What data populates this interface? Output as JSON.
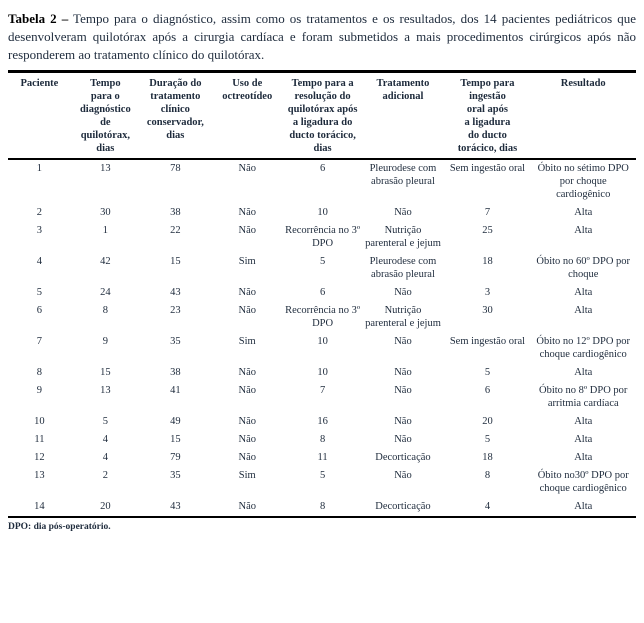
{
  "colors": {
    "text": "#1e2b3c",
    "rule": "#000000"
  },
  "caption": {
    "label": "Tabela 2 –",
    "text": "Tempo para o diagnóstico, assim como os tratamentos e os resultados, dos 14 pacientes pediátricos que desenvolveram quilotórax após a cirurgia cardíaca e foram submetidos a mais procedimentos cirúrgicos após não responderem ao tratamento clínico do quilotórax."
  },
  "table": {
    "headers": [
      [
        "Paciente"
      ],
      [
        "Tempo",
        "para o",
        "diagnóstico",
        "de",
        "quilotórax,",
        "dias"
      ],
      [
        "Duração do",
        "tratamento",
        "clínico",
        "conservador,",
        "dias"
      ],
      [
        "Uso de",
        "octreotídeo"
      ],
      [
        "Tempo para a",
        "resolução do",
        "quilotórax após",
        "a ligadura do",
        "ducto torácico,",
        "dias"
      ],
      [
        "Tratamento",
        "adicional"
      ],
      [
        "Tempo para",
        "ingestão",
        "oral após",
        "a ligadura",
        "do ducto",
        "torácico, dias"
      ],
      [
        "Resultado"
      ]
    ],
    "rows": [
      [
        "1",
        "13",
        "78",
        "Não",
        "6",
        "Pleurodese com abrasão pleural",
        "Sem ingestão oral",
        "Óbito no sétimo DPO por choque cardiogênico"
      ],
      [
        "2",
        "30",
        "38",
        "Não",
        "10",
        "Não",
        "7",
        "Alta"
      ],
      [
        "3",
        "1",
        "22",
        "Não",
        "Recorrência no 3º DPO",
        "Nutrição parenteral e jejum",
        "25",
        "Alta"
      ],
      [
        "4",
        "42",
        "15",
        "Sim",
        "5",
        "Pleurodese com abrasão pleural",
        "18",
        "Óbito no 60º DPO por choque"
      ],
      [
        "5",
        "24",
        "43",
        "Não",
        "6",
        "Não",
        "3",
        "Alta"
      ],
      [
        "6",
        "8",
        "23",
        "Não",
        "Recorrência no 3º DPO",
        "Nutrição parenteral e jejum",
        "30",
        "Alta"
      ],
      [
        "7",
        "9",
        "35",
        "Sim",
        "10",
        "Não",
        "Sem ingestão oral",
        "Óbito no 12º DPO por choque cardiogênico"
      ],
      [
        "8",
        "15",
        "38",
        "Não",
        "10",
        "Não",
        "5",
        "Alta"
      ],
      [
        "9",
        "13",
        "41",
        "Não",
        "7",
        "Não",
        "6",
        "Óbito no 8º DPO por arritmia cardíaca"
      ],
      [
        "10",
        "5",
        "49",
        "Não",
        "16",
        "Não",
        "20",
        "Alta"
      ],
      [
        "11",
        "4",
        "15",
        "Não",
        "8",
        "Não",
        "5",
        "Alta"
      ],
      [
        "12",
        "4",
        "79",
        "Não",
        "11",
        "Decorticação",
        "18",
        "Alta"
      ],
      [
        "13",
        "2",
        "35",
        "Sim",
        "5",
        "Não",
        "8",
        "Óbito no30º DPO por choque cardiogênico"
      ],
      [
        "14",
        "20",
        "43",
        "Não",
        "8",
        "Decorticação",
        "4",
        "Alta"
      ]
    ]
  },
  "footnote": "DPO: dia pós-operatório."
}
